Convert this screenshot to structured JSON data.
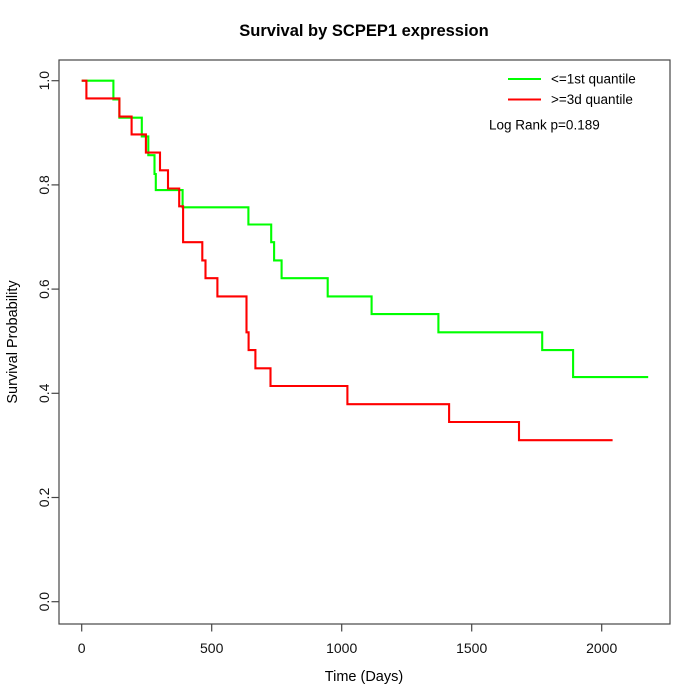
{
  "chart_data": {
    "type": "line",
    "subtype": "kaplan-meier-step",
    "title": "Survival by SCPEP1 expression",
    "xlabel": "Time (Days)",
    "ylabel": "Survival Probability",
    "xlim": [
      0,
      2266
    ],
    "ylim": [
      0,
      1.04
    ],
    "x_ticks": [
      0,
      500,
      1000,
      1500,
      2000
    ],
    "y_ticks": [
      0.0,
      0.2,
      0.4,
      0.6,
      0.8,
      1.0
    ],
    "grid": false,
    "frame_box": true,
    "legend_position": "top-right",
    "annotation": "Log Rank p=0.189",
    "series": [
      {
        "name": "<=1st quantile",
        "color": "#00ff00",
        "points": [
          [
            0,
            1.0
          ],
          [
            122,
            0.964
          ],
          [
            145,
            0.929
          ],
          [
            231,
            0.893
          ],
          [
            256,
            0.857
          ],
          [
            280,
            0.821
          ],
          [
            285,
            0.79
          ],
          [
            388,
            0.757
          ],
          [
            641,
            0.724
          ],
          [
            729,
            0.69
          ],
          [
            740,
            0.655
          ],
          [
            769,
            0.621
          ],
          [
            946,
            0.586
          ],
          [
            1115,
            0.552
          ],
          [
            1372,
            0.517
          ],
          [
            1771,
            0.483
          ],
          [
            1890,
            0.431
          ],
          [
            2179,
            0.431
          ]
        ]
      },
      {
        "name": ">=3d quantile",
        "color": "#ff0000",
        "points": [
          [
            0,
            1.0
          ],
          [
            18,
            0.966
          ],
          [
            145,
            0.931
          ],
          [
            192,
            0.897
          ],
          [
            247,
            0.862
          ],
          [
            301,
            0.828
          ],
          [
            332,
            0.793
          ],
          [
            375,
            0.759
          ],
          [
            390,
            0.69
          ],
          [
            464,
            0.655
          ],
          [
            476,
            0.621
          ],
          [
            522,
            0.586
          ],
          [
            634,
            0.517
          ],
          [
            642,
            0.483
          ],
          [
            668,
            0.448
          ],
          [
            726,
            0.414
          ],
          [
            1022,
            0.379
          ],
          [
            1413,
            0.345
          ],
          [
            1682,
            0.31
          ],
          [
            2042,
            0.31
          ]
        ]
      }
    ]
  }
}
